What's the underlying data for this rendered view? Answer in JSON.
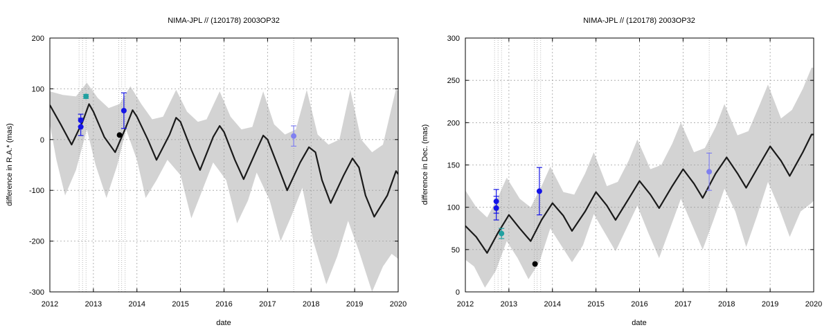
{
  "chart_data": [
    {
      "type": "line",
      "title": "NIMA-JPL // (120178) 2003OP32",
      "xlabel": "date",
      "ylabel": "difference in R.A.* (mas)",
      "xlim": [
        2012,
        2020
      ],
      "ylim": [
        -300,
        200
      ],
      "x_ticks": [
        "2012",
        "2013",
        "2014",
        "2015",
        "2016",
        "2017",
        "2018",
        "2019",
        "2020"
      ],
      "y_ticks": [
        "-300",
        "-200",
        "-100",
        "0",
        "100",
        "200"
      ],
      "grid": true,
      "series": [
        {
          "kind": "line",
          "color": "#1a1a1a",
          "points": [
            [
              2012.0,
              68
            ],
            [
              2012.25,
              30
            ],
            [
              2012.5,
              -10
            ],
            [
              2012.75,
              35
            ],
            [
              2012.9,
              70
            ],
            [
              2013.0,
              55
            ],
            [
              2013.25,
              5
            ],
            [
              2013.5,
              -25
            ],
            [
              2013.75,
              25
            ],
            [
              2013.9,
              58
            ],
            [
              2014.0,
              45
            ],
            [
              2014.25,
              0
            ],
            [
              2014.45,
              -40
            ],
            [
              2014.75,
              10
            ],
            [
              2014.9,
              43
            ],
            [
              2015.0,
              35
            ],
            [
              2015.25,
              -20
            ],
            [
              2015.45,
              -60
            ],
            [
              2015.75,
              5
            ],
            [
              2015.9,
              27
            ],
            [
              2016.0,
              15
            ],
            [
              2016.25,
              -40
            ],
            [
              2016.45,
              -78
            ],
            [
              2016.75,
              -20
            ],
            [
              2016.9,
              8
            ],
            [
              2017.0,
              0
            ],
            [
              2017.25,
              -55
            ],
            [
              2017.45,
              -100
            ],
            [
              2017.75,
              -45
            ],
            [
              2017.95,
              -15
            ],
            [
              2018.1,
              -25
            ],
            [
              2018.25,
              -80
            ],
            [
              2018.45,
              -125
            ],
            [
              2018.75,
              -70
            ],
            [
              2018.95,
              -37
            ],
            [
              2019.1,
              -55
            ],
            [
              2019.25,
              -110
            ],
            [
              2019.45,
              -152
            ],
            [
              2019.75,
              -110
            ],
            [
              2019.95,
              -62
            ],
            [
              2020.0,
              -68
            ]
          ]
        },
        {
          "kind": "band",
          "color": "#d3d3d3",
          "upper": [
            [
              2012.0,
              95
            ],
            [
              2012.3,
              88
            ],
            [
              2012.6,
              85
            ],
            [
              2012.85,
              112
            ],
            [
              2013.1,
              82
            ],
            [
              2013.35,
              62
            ],
            [
              2013.6,
              70
            ],
            [
              2013.85,
              105
            ],
            [
              2014.1,
              70
            ],
            [
              2014.35,
              40
            ],
            [
              2014.6,
              45
            ],
            [
              2014.9,
              98
            ],
            [
              2015.15,
              55
            ],
            [
              2015.4,
              35
            ],
            [
              2015.6,
              40
            ],
            [
              2015.9,
              95
            ],
            [
              2016.15,
              45
            ],
            [
              2016.4,
              20
            ],
            [
              2016.65,
              25
            ],
            [
              2016.9,
              95
            ],
            [
              2017.15,
              30
            ],
            [
              2017.4,
              10
            ],
            [
              2017.65,
              20
            ],
            [
              2017.9,
              98
            ],
            [
              2018.15,
              10
            ],
            [
              2018.4,
              -10
            ],
            [
              2018.65,
              0
            ],
            [
              2018.9,
              98
            ],
            [
              2019.15,
              0
            ],
            [
              2019.4,
              -25
            ],
            [
              2019.65,
              -10
            ],
            [
              2019.95,
              100
            ],
            [
              2020.0,
              95
            ]
          ],
          "lower": [
            [
              2012.0,
              30
            ],
            [
              2012.15,
              -40
            ],
            [
              2012.35,
              -110
            ],
            [
              2012.6,
              -60
            ],
            [
              2012.85,
              20
            ],
            [
              2013.05,
              -50
            ],
            [
              2013.3,
              -115
            ],
            [
              2013.55,
              -50
            ],
            [
              2013.75,
              20
            ],
            [
              2014.0,
              -40
            ],
            [
              2014.2,
              -115
            ],
            [
              2014.45,
              -80
            ],
            [
              2014.7,
              -40
            ],
            [
              2015.0,
              -70
            ],
            [
              2015.25,
              -155
            ],
            [
              2015.5,
              -100
            ],
            [
              2015.75,
              -45
            ],
            [
              2016.05,
              -80
            ],
            [
              2016.3,
              -165
            ],
            [
              2016.55,
              -120
            ],
            [
              2016.75,
              -65
            ],
            [
              2017.05,
              -120
            ],
            [
              2017.3,
              -200
            ],
            [
              2017.55,
              -150
            ],
            [
              2017.8,
              -95
            ],
            [
              2018.05,
              -200
            ],
            [
              2018.35,
              -285
            ],
            [
              2018.6,
              -230
            ],
            [
              2018.85,
              -160
            ],
            [
              2019.1,
              -220
            ],
            [
              2019.4,
              -300
            ],
            [
              2019.65,
              -250
            ],
            [
              2019.85,
              -225
            ],
            [
              2020.0,
              -235
            ]
          ]
        },
        {
          "kind": "points",
          "color": "#1414e6",
          "points": [
            [
              2012.71,
              38,
              12
            ],
            [
              2012.71,
              25,
              17
            ],
            [
              2013.7,
              57,
              35
            ]
          ]
        },
        {
          "kind": "points",
          "color": "#20a0a0",
          "points": [
            [
              2012.83,
              85,
              4
            ]
          ]
        },
        {
          "kind": "points",
          "color": "#000000",
          "points": [
            [
              2013.6,
              9,
              0
            ]
          ]
        },
        {
          "kind": "points",
          "color": "#8080f0",
          "points": [
            [
              2017.6,
              7,
              20
            ]
          ]
        }
      ],
      "vlines": [
        2012.67,
        2012.75,
        2012.83,
        2013.58,
        2013.65,
        2013.73,
        2017.6
      ]
    },
    {
      "type": "line",
      "title": "NIMA-JPL // (120178) 2003OP32",
      "xlabel": "date",
      "ylabel": "difference in Dec. (mas)",
      "xlim": [
        2012,
        2020
      ],
      "ylim": [
        0,
        300
      ],
      "x_ticks": [
        "2012",
        "2013",
        "2014",
        "2015",
        "2016",
        "2017",
        "2018",
        "2019",
        "2020"
      ],
      "y_ticks": [
        "0",
        "50",
        "100",
        "150",
        "200",
        "250",
        "300"
      ],
      "grid": true,
      "series": [
        {
          "kind": "line",
          "color": "#1a1a1a",
          "points": [
            [
              2012.0,
              78
            ],
            [
              2012.25,
              65
            ],
            [
              2012.5,
              46
            ],
            [
              2012.75,
              70
            ],
            [
              2013.0,
              91
            ],
            [
              2013.25,
              75
            ],
            [
              2013.5,
              60
            ],
            [
              2013.75,
              85
            ],
            [
              2014.0,
              105
            ],
            [
              2014.25,
              90
            ],
            [
              2014.45,
              72
            ],
            [
              2014.75,
              95
            ],
            [
              2015.0,
              118
            ],
            [
              2015.25,
              102
            ],
            [
              2015.45,
              85
            ],
            [
              2015.75,
              110
            ],
            [
              2016.0,
              131
            ],
            [
              2016.25,
              115
            ],
            [
              2016.45,
              99
            ],
            [
              2016.75,
              125
            ],
            [
              2017.0,
              145
            ],
            [
              2017.25,
              128
            ],
            [
              2017.45,
              111
            ],
            [
              2017.75,
              140
            ],
            [
              2018.0,
              159
            ],
            [
              2018.25,
              140
            ],
            [
              2018.45,
              123
            ],
            [
              2018.75,
              150
            ],
            [
              2019.0,
              172
            ],
            [
              2019.25,
              155
            ],
            [
              2019.45,
              137
            ],
            [
              2019.75,
              165
            ],
            [
              2019.95,
              186
            ],
            [
              2020.0,
              186
            ]
          ]
        },
        {
          "kind": "band",
          "color": "#d3d3d3",
          "upper": [
            [
              2012.0,
              120
            ],
            [
              2012.25,
              100
            ],
            [
              2012.5,
              88
            ],
            [
              2012.75,
              112
            ],
            [
              2012.95,
              135
            ],
            [
              2013.25,
              110
            ],
            [
              2013.5,
              100
            ],
            [
              2013.75,
              125
            ],
            [
              2013.95,
              148
            ],
            [
              2014.25,
              118
            ],
            [
              2014.5,
              115
            ],
            [
              2014.75,
              140
            ],
            [
              2014.95,
              165
            ],
            [
              2015.25,
              125
            ],
            [
              2015.5,
              130
            ],
            [
              2015.75,
              155
            ],
            [
              2015.95,
              180
            ],
            [
              2016.25,
              145
            ],
            [
              2016.5,
              150
            ],
            [
              2016.75,
              175
            ],
            [
              2016.95,
              200
            ],
            [
              2017.25,
              165
            ],
            [
              2017.5,
              170
            ],
            [
              2017.75,
              195
            ],
            [
              2017.95,
              222
            ],
            [
              2018.25,
              185
            ],
            [
              2018.5,
              190
            ],
            [
              2018.75,
              220
            ],
            [
              2018.95,
              245
            ],
            [
              2019.25,
              205
            ],
            [
              2019.5,
              215
            ],
            [
              2019.75,
              240
            ],
            [
              2019.95,
              265
            ],
            [
              2020.0,
              265
            ]
          ],
          "lower": [
            [
              2012.0,
              38
            ],
            [
              2012.2,
              30
            ],
            [
              2012.45,
              5
            ],
            [
              2012.7,
              25
            ],
            [
              2012.95,
              60
            ],
            [
              2013.2,
              40
            ],
            [
              2013.45,
              15
            ],
            [
              2013.7,
              35
            ],
            [
              2013.95,
              75
            ],
            [
              2014.2,
              55
            ],
            [
              2014.45,
              35
            ],
            [
              2014.7,
              55
            ],
            [
              2014.95,
              92
            ],
            [
              2015.2,
              70
            ],
            [
              2015.45,
              48
            ],
            [
              2015.7,
              75
            ],
            [
              2015.95,
              102
            ],
            [
              2016.2,
              70
            ],
            [
              2016.45,
              40
            ],
            [
              2016.7,
              75
            ],
            [
              2016.95,
              110
            ],
            [
              2017.2,
              80
            ],
            [
              2017.45,
              50
            ],
            [
              2017.7,
              85
            ],
            [
              2017.95,
              122
            ],
            [
              2018.2,
              95
            ],
            [
              2018.45,
              53
            ],
            [
              2018.7,
              90
            ],
            [
              2018.95,
              130
            ],
            [
              2019.2,
              100
            ],
            [
              2019.45,
              65
            ],
            [
              2019.7,
              95
            ],
            [
              2019.95,
              105
            ],
            [
              2020.0,
              108
            ]
          ]
        },
        {
          "kind": "points",
          "color": "#1414e6",
          "points": [
            [
              2012.71,
              107,
              14
            ],
            [
              2012.71,
              99,
              14
            ],
            [
              2013.7,
              119,
              28
            ]
          ]
        },
        {
          "kind": "points",
          "color": "#20a0a0",
          "points": [
            [
              2012.83,
              69,
              6
            ]
          ]
        },
        {
          "kind": "points",
          "color": "#000000",
          "points": [
            [
              2013.6,
              33,
              0
            ]
          ]
        },
        {
          "kind": "points",
          "color": "#8080f0",
          "points": [
            [
              2017.6,
              142,
              22
            ]
          ]
        }
      ],
      "vlines": [
        2012.67,
        2012.75,
        2012.83,
        2013.58,
        2013.65,
        2013.73,
        2017.6
      ]
    }
  ]
}
